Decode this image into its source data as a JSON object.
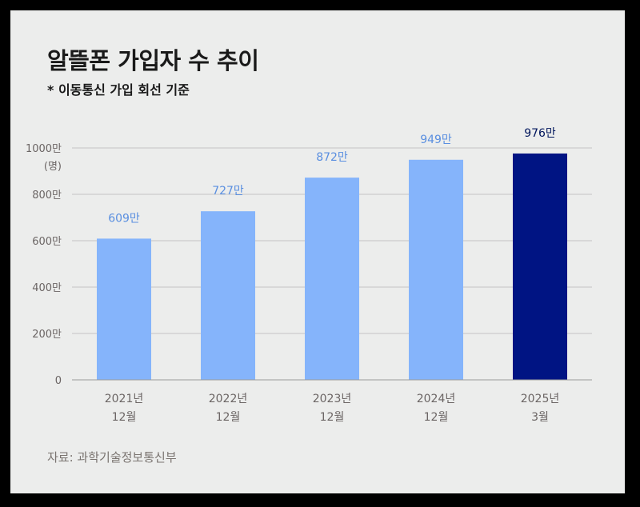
{
  "header": {
    "title": "알뜰폰 가입자 수 추이",
    "subtitle": "* 이동통신 가입 회선 기준"
  },
  "footer": {
    "source": "자료: 과학기술정보통신부"
  },
  "colors": {
    "background": "#ecedec",
    "bar_light": "#85b4fb",
    "bar_dark": "#001483",
    "label_light": "#5a8fe0",
    "label_dark": "#00155c",
    "grid": "#c4c4c4",
    "axis_text": "#6b6564"
  },
  "chart_data": {
    "type": "bar",
    "title": "알뜰폰 가입자 수 추이",
    "subtitle": "* 이동통신 가입 회선 기준",
    "categories": [
      [
        "2021년",
        "12월"
      ],
      [
        "2022년",
        "12월"
      ],
      [
        "2023년",
        "12월"
      ],
      [
        "2024년",
        "12월"
      ],
      [
        "2025년",
        "3월"
      ]
    ],
    "values": [
      609,
      727,
      872,
      949,
      976
    ],
    "data_labels": [
      "609만",
      "727만",
      "872만",
      "949만",
      "976만"
    ],
    "highlight_index": 4,
    "ylim": [
      0,
      1000
    ],
    "yticks": [
      0,
      200,
      400,
      600,
      800,
      1000
    ],
    "ytick_labels": [
      "0",
      "200만",
      "400만",
      "600만",
      "800만",
      "1000만"
    ],
    "yunit": "(명)",
    "grid": true,
    "legend": "none"
  }
}
